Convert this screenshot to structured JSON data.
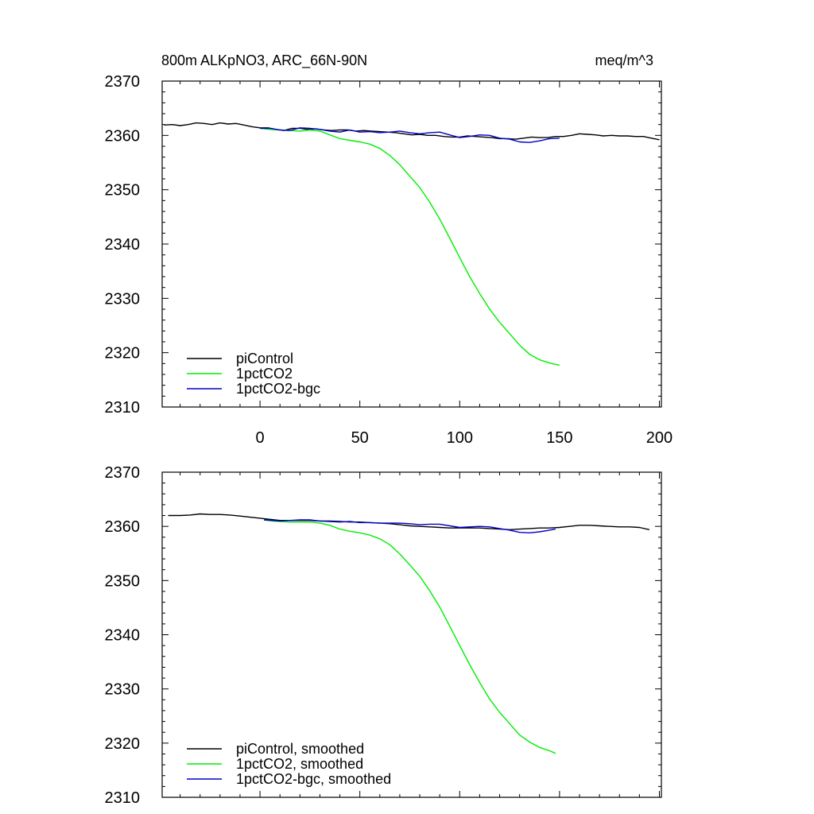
{
  "header": {
    "title": "800m ALKpNO3, ARC_66N-90N",
    "units": "meq/m^3"
  },
  "chart_data": [
    {
      "type": "line",
      "title": "800m ALKpNO3, ARC_66N-90N",
      "units": "meq/m^3",
      "xlim": [
        -49,
        201
      ],
      "ylim": [
        2310,
        2370
      ],
      "x_ticks": [
        0,
        50,
        100,
        150,
        200
      ],
      "y_ticks": [
        2310,
        2320,
        2330,
        2340,
        2350,
        2360,
        2370
      ],
      "show_x_tick_labels": true,
      "legend_position": "bottom-left",
      "series": [
        {
          "name": "piControl",
          "color": "#000000",
          "x": [
            -48,
            -44,
            -40,
            -36,
            -32,
            -28,
            -24,
            -20,
            -16,
            -12,
            -8,
            -4,
            0,
            4,
            8,
            12,
            16,
            20,
            24,
            28,
            32,
            36,
            40,
            44,
            48,
            52,
            56,
            60,
            64,
            68,
            72,
            76,
            80,
            84,
            88,
            92,
            96,
            100,
            104,
            108,
            112,
            116,
            120,
            124,
            128,
            132,
            136,
            140,
            144,
            148,
            152,
            156,
            160,
            164,
            168,
            172,
            176,
            180,
            184,
            188,
            192,
            196,
            200
          ],
          "y": [
            2361.9,
            2362.0,
            2361.8,
            2362.0,
            2362.3,
            2362.2,
            2362.0,
            2362.3,
            2362.1,
            2362.2,
            2361.9,
            2361.6,
            2361.4,
            2361.4,
            2361.1,
            2360.9,
            2361.3,
            2361.3,
            2361.1,
            2361.2,
            2361.0,
            2360.9,
            2361.0,
            2361.0,
            2360.8,
            2360.9,
            2360.8,
            2360.7,
            2360.6,
            2360.5,
            2360.3,
            2360.1,
            2360.2,
            2360.0,
            2360.0,
            2359.8,
            2359.7,
            2359.7,
            2359.9,
            2359.8,
            2359.7,
            2359.6,
            2359.4,
            2359.4,
            2359.3,
            2359.5,
            2359.7,
            2359.6,
            2359.6,
            2359.8,
            2359.8,
            2360.0,
            2360.3,
            2360.2,
            2360.1,
            2359.9,
            2360.0,
            2359.9,
            2359.9,
            2359.8,
            2359.8,
            2359.5,
            2359.2
          ]
        },
        {
          "name": "1pctCO2",
          "color": "#00ee00",
          "x": [
            0,
            5,
            10,
            15,
            20,
            25,
            30,
            35,
            40,
            45,
            50,
            55,
            60,
            65,
            70,
            75,
            80,
            85,
            90,
            95,
            100,
            105,
            110,
            115,
            120,
            125,
            130,
            135,
            140,
            145,
            150
          ],
          "y": [
            2361.3,
            2361.1,
            2361.0,
            2360.9,
            2360.8,
            2361.0,
            2360.8,
            2360.1,
            2359.4,
            2359.1,
            2358.8,
            2358.4,
            2357.6,
            2356.3,
            2354.6,
            2352.5,
            2350.4,
            2347.7,
            2344.6,
            2341.1,
            2337.5,
            2334.0,
            2330.9,
            2328.0,
            2325.6,
            2323.5,
            2321.4,
            2319.7,
            2318.7,
            2318.1,
            2317.7
          ]
        },
        {
          "name": "1pctCO2-bgc",
          "color": "#0000cc",
          "x": [
            0,
            5,
            10,
            15,
            20,
            25,
            30,
            35,
            40,
            45,
            50,
            55,
            60,
            65,
            70,
            75,
            80,
            85,
            90,
            95,
            100,
            105,
            110,
            115,
            120,
            125,
            130,
            135,
            140,
            145,
            150
          ],
          "y": [
            2361.3,
            2361.3,
            2361.0,
            2360.9,
            2361.4,
            2361.3,
            2361.1,
            2360.8,
            2360.6,
            2361.0,
            2360.6,
            2360.7,
            2360.5,
            2360.6,
            2360.8,
            2360.5,
            2360.3,
            2360.5,
            2360.6,
            2360.1,
            2359.6,
            2359.8,
            2360.1,
            2360.0,
            2359.5,
            2359.3,
            2358.8,
            2358.7,
            2359.0,
            2359.4,
            2359.5
          ]
        }
      ]
    },
    {
      "type": "line",
      "xlim": [
        -49,
        201
      ],
      "ylim": [
        2310,
        2370
      ],
      "x_ticks": [
        0,
        50,
        100,
        150,
        200
      ],
      "y_ticks": [
        2310,
        2320,
        2330,
        2340,
        2350,
        2360,
        2370
      ],
      "show_x_tick_labels": false,
      "legend_position": "bottom-left",
      "series": [
        {
          "name": "piControl, smoothed",
          "color": "#000000",
          "x": [
            -46,
            -40,
            -35,
            -30,
            -25,
            -20,
            -15,
            -10,
            -5,
            0,
            5,
            10,
            15,
            20,
            25,
            30,
            35,
            40,
            45,
            50,
            55,
            60,
            65,
            70,
            75,
            80,
            85,
            90,
            95,
            100,
            105,
            110,
            115,
            120,
            125,
            130,
            135,
            140,
            145,
            150,
            155,
            160,
            165,
            170,
            175,
            180,
            185,
            190,
            195
          ],
          "y": [
            2362.0,
            2362.0,
            2362.1,
            2362.3,
            2362.2,
            2362.2,
            2362.1,
            2361.9,
            2361.7,
            2361.5,
            2361.3,
            2361.1,
            2361.1,
            2361.1,
            2361.1,
            2361.0,
            2361.0,
            2360.9,
            2360.8,
            2360.8,
            2360.7,
            2360.6,
            2360.5,
            2360.3,
            2360.1,
            2360.0,
            2359.9,
            2359.8,
            2359.7,
            2359.7,
            2359.7,
            2359.7,
            2359.6,
            2359.5,
            2359.4,
            2359.5,
            2359.6,
            2359.7,
            2359.7,
            2359.8,
            2360.0,
            2360.2,
            2360.2,
            2360.1,
            2360.0,
            2359.9,
            2359.9,
            2359.8,
            2359.4
          ]
        },
        {
          "name": "1pctCO2, smoothed",
          "color": "#00ee00",
          "x": [
            2,
            6,
            10,
            15,
            20,
            25,
            30,
            35,
            40,
            45,
            50,
            55,
            60,
            65,
            70,
            75,
            80,
            85,
            90,
            95,
            100,
            105,
            110,
            115,
            120,
            125,
            130,
            135,
            140,
            145,
            148
          ],
          "y": [
            2361.2,
            2361.0,
            2360.9,
            2360.8,
            2360.8,
            2360.8,
            2360.6,
            2360.2,
            2359.5,
            2359.1,
            2358.8,
            2358.4,
            2357.7,
            2356.6,
            2354.9,
            2352.9,
            2350.8,
            2348.1,
            2345.1,
            2341.6,
            2338.0,
            2334.5,
            2331.2,
            2328.1,
            2325.7,
            2323.6,
            2321.5,
            2320.2,
            2319.2,
            2318.6,
            2318.1
          ]
        },
        {
          "name": "1pctCO2-bgc, smoothed",
          "color": "#0000cc",
          "x": [
            2,
            6,
            10,
            15,
            20,
            25,
            30,
            35,
            40,
            45,
            50,
            55,
            60,
            65,
            70,
            75,
            80,
            85,
            90,
            95,
            100,
            105,
            110,
            115,
            120,
            125,
            130,
            135,
            140,
            145,
            148
          ],
          "y": [
            2361.2,
            2361.1,
            2361.0,
            2361.1,
            2361.2,
            2361.2,
            2361.0,
            2360.9,
            2360.8,
            2360.9,
            2360.7,
            2360.7,
            2360.6,
            2360.6,
            2360.6,
            2360.5,
            2360.3,
            2360.4,
            2360.4,
            2360.1,
            2359.8,
            2359.9,
            2360.0,
            2359.9,
            2359.6,
            2359.3,
            2358.9,
            2358.8,
            2359.0,
            2359.3,
            2359.5
          ]
        }
      ]
    }
  ]
}
